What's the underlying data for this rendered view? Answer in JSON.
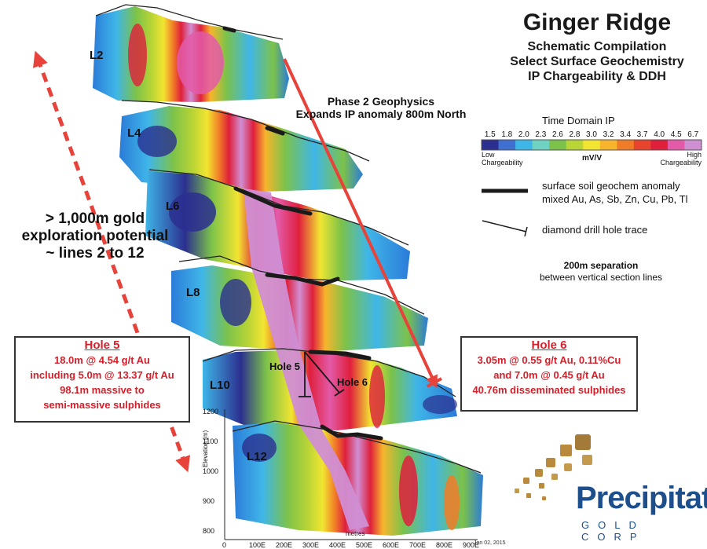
{
  "title": "Ginger Ridge",
  "subtitle_lines": [
    "Schematic Compilation",
    "Select Surface Geochemistry",
    "IP Chargeability  &  DDH"
  ],
  "phase2_lines": [
    "Phase 2 Geophysics",
    "Expands IP anomaly 800m North"
  ],
  "potential_lines": [
    "> 1,000m gold",
    "exploration potential",
    "~ lines 2 to 12"
  ],
  "legend": {
    "title": "Time Domain IP",
    "ticks": [
      "1.5",
      "1.8",
      "2.0",
      "2.3",
      "2.6",
      "2.8",
      "3.0",
      "3.2",
      "3.4",
      "3.7",
      "4.0",
      "4.5",
      "6.7"
    ],
    "unit": "mV/V",
    "low_label": [
      "Low",
      "Chargeability"
    ],
    "high_label": [
      "High",
      "Chargeability"
    ],
    "colors": [
      "#2b2f8f",
      "#3f6fd0",
      "#3fb6e8",
      "#6ed3c3",
      "#7cc24a",
      "#b8d435",
      "#f2e531",
      "#f7b52c",
      "#f17c27",
      "#e8432c",
      "#df1f3c",
      "#e35aa8",
      "#d08ed3"
    ],
    "soil_text": [
      "surface soil geochem anomaly",
      "mixed Au, As, Sb, Zn, Cu, Pb, Tl"
    ],
    "ddh_text": "diamond drill hole trace",
    "sep_bold": "200m separation",
    "sep_text": "between vertical section lines"
  },
  "hole5": {
    "title": "Hole 5",
    "lines": [
      "18.0m @ 4.54 g/t Au",
      "including 5.0m @ 13.37 g/t Au",
      "98.1m massive to",
      "semi-massive sulphides"
    ]
  },
  "hole6": {
    "title": "Hole 6",
    "lines": [
      "3.05m @ 0.55 g/t Au, 0.11%Cu",
      "and 7.0m @ 0.45 g/t Au",
      "40.76m disseminated sulphides"
    ]
  },
  "sections": [
    "L2",
    "L4",
    "L6",
    "L8",
    "L10",
    "L12"
  ],
  "hole_labels": [
    "Hole 5",
    "Hole 6"
  ],
  "axes": {
    "y_label": "Elevation (m)",
    "y_ticks": [
      "1200",
      "1100",
      "1000",
      "900",
      "800"
    ],
    "x_label": "metres",
    "x_ticks": [
      "0",
      "100E",
      "200E",
      "300E",
      "400E",
      "500E",
      "600E",
      "700E",
      "800E",
      "900E"
    ]
  },
  "logo": {
    "main": "Precipitate",
    "sub": "GOLD CORP"
  },
  "date": "Jan 02, 2015"
}
